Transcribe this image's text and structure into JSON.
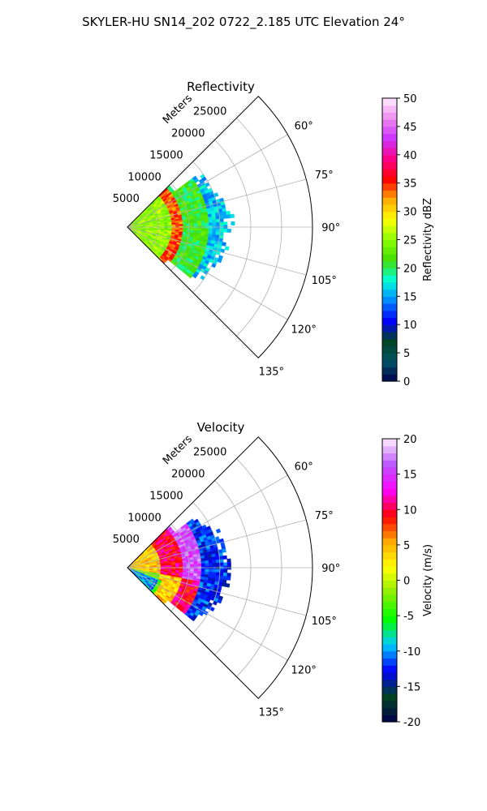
{
  "figure": {
    "suptitle": "SKYLER-HU  SN14_202  0722_2.185 UTC Elevation 24°"
  },
  "chart_data": [
    {
      "type": "heatmap",
      "projection": "polar-sector",
      "title": "Reflectivity",
      "range_label": "Meters",
      "radial_ticks": [
        5000,
        10000,
        15000,
        20000,
        25000
      ],
      "radial_max": 30000,
      "azimuth_ticks": [
        60,
        75,
        90,
        105,
        120,
        135
      ],
      "azimuth_tick_labels": [
        "60°",
        "75°",
        "90°",
        "105°",
        "120°",
        "135°"
      ],
      "azimuth_range": [
        45,
        135
      ],
      "grid": true,
      "field_extent_range_m": [
        0,
        17000
      ],
      "field_summary": [
        {
          "range_m": [
            0,
            7000
          ],
          "value": 25
        },
        {
          "range_m": [
            7000,
            9000
          ],
          "value": 34
        },
        {
          "range_m": [
            9000,
            13000
          ],
          "value": 21
        },
        {
          "range_m": [
            13000,
            17000
          ],
          "value": 16
        }
      ],
      "colorbar": {
        "label": "Reflectivity dBZ",
        "min": 0,
        "max": 50,
        "ticks": [
          0,
          5,
          10,
          15,
          20,
          25,
          30,
          35,
          40,
          45,
          50
        ],
        "colormap": "pyart_HomeyerRainbow"
      }
    },
    {
      "type": "heatmap",
      "projection": "polar-sector",
      "title": "Velocity",
      "range_label": "Meters",
      "radial_ticks": [
        5000,
        10000,
        15000,
        20000,
        25000
      ],
      "radial_max": 30000,
      "azimuth_ticks": [
        60,
        75,
        90,
        105,
        120,
        135
      ],
      "azimuth_tick_labels": [
        "60°",
        "75°",
        "90°",
        "105°",
        "120°",
        "135°"
      ],
      "azimuth_range": [
        45,
        135
      ],
      "grid": true,
      "field_extent_range_m": [
        0,
        17000
      ],
      "field_summary": [
        {
          "range_m": [
            0,
            5000
          ],
          "value": 4
        },
        {
          "range_m": [
            5000,
            9000
          ],
          "value": 10
        },
        {
          "range_m": [
            9000,
            12000
          ],
          "value": 16
        },
        {
          "range_m": [
            12000,
            17000
          ],
          "value": -12
        }
      ],
      "colorbar": {
        "label": "Velocity (m/s)",
        "min": -20,
        "max": 20,
        "ticks": [
          -20,
          -15,
          -10,
          -5,
          0,
          5,
          10,
          15,
          20
        ],
        "colormap": "pyart_BuDRd18"
      }
    }
  ],
  "colors": {
    "grid": "#b0b0b0",
    "axes": "#000000",
    "refl_stops": [
      "#00004c",
      "#005566",
      "#004422",
      "#0000ff",
      "#0088ff",
      "#00ffdd",
      "#44dd00",
      "#88ff00",
      "#ffff00",
      "#ffaa00",
      "#ff0000",
      "#ff0088",
      "#cc33ff",
      "#ee88ee",
      "#ffeeff"
    ],
    "vel_stops": [
      "#00004c",
      "#004422",
      "#0000ff",
      "#00ccff",
      "#00ff00",
      "#88ee00",
      "#ffff00",
      "#ffaa00",
      "#ff0000",
      "#ff00ff",
      "#bb55ff",
      "#ffeeff"
    ]
  }
}
